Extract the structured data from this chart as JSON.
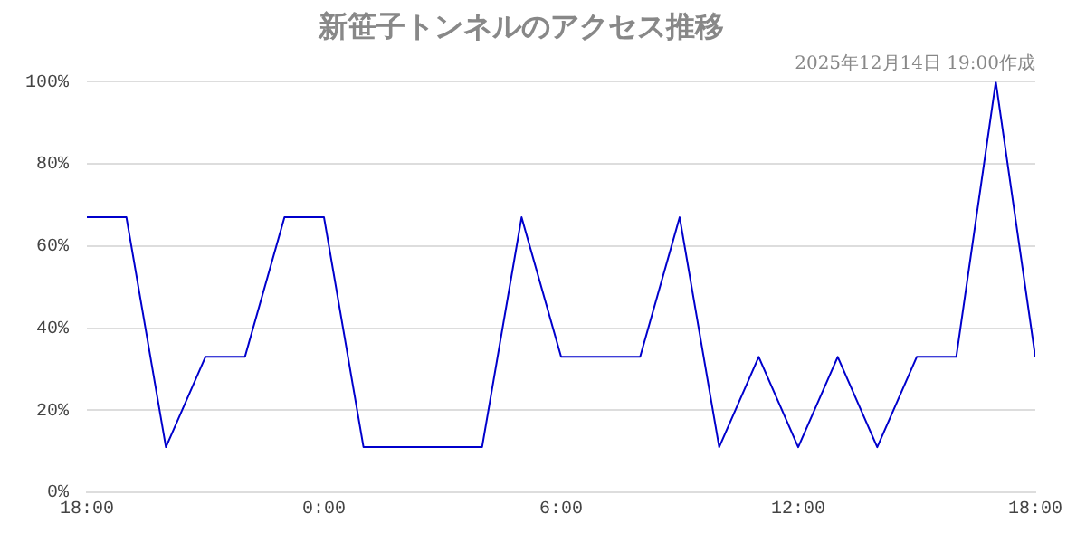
{
  "chart_data": {
    "type": "line",
    "title": "新笹子トンネルのアクセス推移",
    "subtitle": "2025年12月14日 19:00作成",
    "x": [
      "2025-12-13T18:00",
      "2025-12-13T19:00",
      "2025-12-13T20:00",
      "2025-12-13T21:00",
      "2025-12-13T22:00",
      "2025-12-13T23:00",
      "2025-12-14T00:00",
      "2025-12-14T01:00",
      "2025-12-14T02:00",
      "2025-12-14T03:00",
      "2025-12-14T04:00",
      "2025-12-14T05:00",
      "2025-12-14T06:00",
      "2025-12-14T07:00",
      "2025-12-14T08:00",
      "2025-12-14T09:00",
      "2025-12-14T10:00",
      "2025-12-14T11:00",
      "2025-12-14T12:00",
      "2025-12-14T13:00",
      "2025-12-14T14:00",
      "2025-12-14T15:00",
      "2025-12-14T16:00",
      "2025-12-14T17:00",
      "2025-12-14T18:00"
    ],
    "series": [
      {
        "color": "#0000cc",
        "values": [
          67,
          67,
          11,
          33,
          33,
          67,
          67,
          11,
          11,
          11,
          11,
          67,
          33,
          33,
          33,
          67,
          11,
          33,
          11,
          33,
          11,
          33,
          33,
          100,
          33
        ]
      }
    ],
    "xlim": [
      "2025-12-13T18:00",
      "2025-12-14T18:00"
    ],
    "xticks": [
      {
        "value": "2025-12-13T18:00",
        "label": "18:00"
      },
      {
        "value": "2025-12-14T00:00",
        "label": "0:00"
      },
      {
        "value": "2025-12-14T06:00",
        "label": "6:00"
      },
      {
        "value": "2025-12-14T12:00",
        "label": "12:00"
      },
      {
        "value": "2025-12-14T18:00",
        "label": "18:00"
      }
    ],
    "ylim": [
      0,
      100
    ],
    "yticks": [
      {
        "value": 0,
        "label": "0%"
      },
      {
        "value": 20,
        "label": "20%"
      },
      {
        "value": 40,
        "label": "40%"
      },
      {
        "value": 60,
        "label": "60%"
      },
      {
        "value": 80,
        "label": "80%"
      },
      {
        "value": 100,
        "label": "100%"
      }
    ],
    "grid": "y",
    "marker": "none",
    "line_style": "solid",
    "legend": false
  }
}
